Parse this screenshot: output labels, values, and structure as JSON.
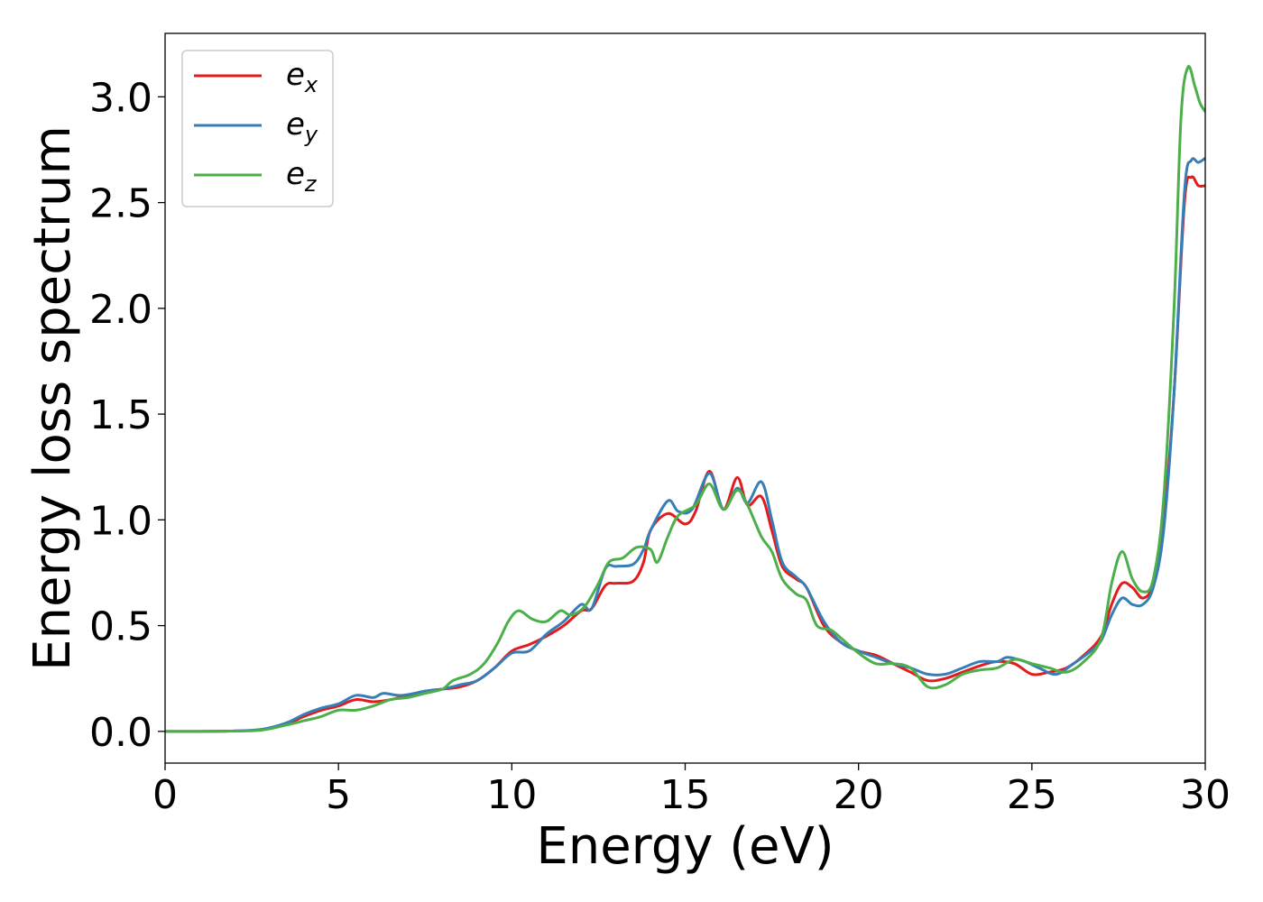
{
  "chart_data": {
    "type": "line",
    "xlabel": "Energy (eV)",
    "ylabel": "Energy loss spectrum",
    "xlim": [
      0,
      30
    ],
    "ylim": [
      -0.15,
      3.3
    ],
    "xticks": [
      0,
      5,
      10,
      15,
      20,
      25,
      30
    ],
    "yticks": [
      0.0,
      0.5,
      1.0,
      1.5,
      2.0,
      2.5,
      3.0
    ],
    "xtick_labels": [
      "0",
      "5",
      "10",
      "15",
      "20",
      "25",
      "30"
    ],
    "ytick_labels": [
      "0.0",
      "0.5",
      "1.0",
      "1.5",
      "2.0",
      "2.5",
      "3.0"
    ],
    "grid": false,
    "legend_position": "top-left",
    "series": [
      {
        "name": "e_x",
        "label_base": "e",
        "label_sub": "x",
        "color": "#e41a1c",
        "points": [
          [
            0,
            0
          ],
          [
            1,
            0
          ],
          [
            2,
            0.002
          ],
          [
            2.8,
            0.008
          ],
          [
            3.5,
            0.035
          ],
          [
            4,
            0.07
          ],
          [
            4.5,
            0.1
          ],
          [
            5,
            0.12
          ],
          [
            5.5,
            0.15
          ],
          [
            6,
            0.14
          ],
          [
            6.5,
            0.15
          ],
          [
            7,
            0.17
          ],
          [
            7.5,
            0.19
          ],
          [
            8,
            0.2
          ],
          [
            8.5,
            0.21
          ],
          [
            9,
            0.24
          ],
          [
            9.5,
            0.3
          ],
          [
            10,
            0.38
          ],
          [
            10.5,
            0.41
          ],
          [
            11,
            0.45
          ],
          [
            11.5,
            0.5
          ],
          [
            12,
            0.57
          ],
          [
            12.3,
            0.58
          ],
          [
            12.7,
            0.69
          ],
          [
            13,
            0.7
          ],
          [
            13.5,
            0.71
          ],
          [
            13.8,
            0.8
          ],
          [
            14,
            0.95
          ],
          [
            14.5,
            1.03
          ],
          [
            15,
            0.98
          ],
          [
            15.3,
            1.04
          ],
          [
            15.7,
            1.23
          ],
          [
            16.1,
            1.05
          ],
          [
            16.5,
            1.2
          ],
          [
            16.8,
            1.07
          ],
          [
            17.2,
            1.11
          ],
          [
            17.5,
            0.95
          ],
          [
            17.8,
            0.78
          ],
          [
            18.2,
            0.72
          ],
          [
            18.5,
            0.68
          ],
          [
            19,
            0.5
          ],
          [
            19.5,
            0.42
          ],
          [
            20,
            0.38
          ],
          [
            20.5,
            0.36
          ],
          [
            21,
            0.32
          ],
          [
            21.5,
            0.28
          ],
          [
            22,
            0.24
          ],
          [
            22.5,
            0.25
          ],
          [
            23,
            0.28
          ],
          [
            23.5,
            0.31
          ],
          [
            24,
            0.33
          ],
          [
            24.5,
            0.32
          ],
          [
            25,
            0.27
          ],
          [
            25.5,
            0.28
          ],
          [
            26,
            0.3
          ],
          [
            26.5,
            0.36
          ],
          [
            27,
            0.45
          ],
          [
            27.3,
            0.6
          ],
          [
            27.6,
            0.7
          ],
          [
            27.9,
            0.68
          ],
          [
            28.2,
            0.63
          ],
          [
            28.5,
            0.7
          ],
          [
            28.8,
            1.0
          ],
          [
            29.1,
            1.6
          ],
          [
            29.4,
            2.5
          ],
          [
            29.6,
            2.62
          ],
          [
            29.8,
            2.58
          ],
          [
            30,
            2.58
          ]
        ]
      },
      {
        "name": "e_y",
        "label_base": "e",
        "label_sub": "y",
        "color": "#377eb8",
        "points": [
          [
            0,
            0
          ],
          [
            1,
            0
          ],
          [
            2,
            0.002
          ],
          [
            2.8,
            0.01
          ],
          [
            3.5,
            0.04
          ],
          [
            4,
            0.08
          ],
          [
            4.5,
            0.11
          ],
          [
            5,
            0.13
          ],
          [
            5.5,
            0.17
          ],
          [
            6,
            0.16
          ],
          [
            6.3,
            0.18
          ],
          [
            6.8,
            0.17
          ],
          [
            7.5,
            0.19
          ],
          [
            8,
            0.2
          ],
          [
            8.5,
            0.22
          ],
          [
            9,
            0.24
          ],
          [
            9.5,
            0.3
          ],
          [
            10,
            0.37
          ],
          [
            10.5,
            0.38
          ],
          [
            11,
            0.46
          ],
          [
            11.5,
            0.52
          ],
          [
            12,
            0.6
          ],
          [
            12.3,
            0.58
          ],
          [
            12.7,
            0.77
          ],
          [
            13,
            0.78
          ],
          [
            13.5,
            0.79
          ],
          [
            13.8,
            0.86
          ],
          [
            14,
            0.95
          ],
          [
            14.5,
            1.09
          ],
          [
            14.8,
            1.04
          ],
          [
            15.2,
            1.05
          ],
          [
            15.7,
            1.22
          ],
          [
            16.1,
            1.05
          ],
          [
            16.5,
            1.15
          ],
          [
            16.8,
            1.08
          ],
          [
            17.2,
            1.18
          ],
          [
            17.5,
            1.0
          ],
          [
            17.8,
            0.8
          ],
          [
            18.2,
            0.73
          ],
          [
            18.5,
            0.68
          ],
          [
            19,
            0.52
          ],
          [
            19.5,
            0.42
          ],
          [
            20,
            0.38
          ],
          [
            20.5,
            0.35
          ],
          [
            21,
            0.32
          ],
          [
            21.5,
            0.3
          ],
          [
            22,
            0.27
          ],
          [
            22.5,
            0.27
          ],
          [
            23,
            0.3
          ],
          [
            23.5,
            0.33
          ],
          [
            24,
            0.33
          ],
          [
            24.3,
            0.35
          ],
          [
            24.8,
            0.33
          ],
          [
            25.2,
            0.3
          ],
          [
            25.7,
            0.27
          ],
          [
            26.2,
            0.32
          ],
          [
            26.7,
            0.38
          ],
          [
            27,
            0.43
          ],
          [
            27.3,
            0.55
          ],
          [
            27.6,
            0.63
          ],
          [
            27.9,
            0.6
          ],
          [
            28.2,
            0.6
          ],
          [
            28.5,
            0.68
          ],
          [
            28.8,
            0.95
          ],
          [
            29.1,
            1.6
          ],
          [
            29.4,
            2.55
          ],
          [
            29.6,
            2.7
          ],
          [
            29.8,
            2.69
          ],
          [
            30,
            2.71
          ]
        ]
      },
      {
        "name": "e_z",
        "label_base": "e",
        "label_sub": "z",
        "color": "#4daf4a",
        "points": [
          [
            0,
            0
          ],
          [
            1,
            0
          ],
          [
            2,
            0.001
          ],
          [
            2.8,
            0.006
          ],
          [
            3.5,
            0.03
          ],
          [
            4,
            0.05
          ],
          [
            4.5,
            0.07
          ],
          [
            5,
            0.1
          ],
          [
            5.5,
            0.1
          ],
          [
            6,
            0.12
          ],
          [
            6.5,
            0.15
          ],
          [
            7,
            0.16
          ],
          [
            7.5,
            0.18
          ],
          [
            8,
            0.2
          ],
          [
            8.3,
            0.24
          ],
          [
            8.8,
            0.27
          ],
          [
            9.2,
            0.32
          ],
          [
            9.6,
            0.42
          ],
          [
            9.9,
            0.52
          ],
          [
            10.2,
            0.57
          ],
          [
            10.6,
            0.53
          ],
          [
            11,
            0.52
          ],
          [
            11.4,
            0.57
          ],
          [
            11.7,
            0.55
          ],
          [
            12.1,
            0.59
          ],
          [
            12.5,
            0.7
          ],
          [
            12.8,
            0.8
          ],
          [
            13.2,
            0.82
          ],
          [
            13.6,
            0.87
          ],
          [
            14,
            0.86
          ],
          [
            14.2,
            0.8
          ],
          [
            14.5,
            0.92
          ],
          [
            14.8,
            1.02
          ],
          [
            15.3,
            1.07
          ],
          [
            15.7,
            1.17
          ],
          [
            16.1,
            1.05
          ],
          [
            16.5,
            1.14
          ],
          [
            16.8,
            1.07
          ],
          [
            17.2,
            0.92
          ],
          [
            17.5,
            0.85
          ],
          [
            17.8,
            0.72
          ],
          [
            18.2,
            0.65
          ],
          [
            18.5,
            0.62
          ],
          [
            18.8,
            0.5
          ],
          [
            19.2,
            0.48
          ],
          [
            19.5,
            0.44
          ],
          [
            20,
            0.37
          ],
          [
            20.5,
            0.32
          ],
          [
            21,
            0.32
          ],
          [
            21.5,
            0.3
          ],
          [
            22,
            0.21
          ],
          [
            22.5,
            0.22
          ],
          [
            23,
            0.27
          ],
          [
            23.5,
            0.29
          ],
          [
            24,
            0.3
          ],
          [
            24.5,
            0.34
          ],
          [
            25,
            0.32
          ],
          [
            25.5,
            0.3
          ],
          [
            26,
            0.28
          ],
          [
            26.5,
            0.33
          ],
          [
            27,
            0.44
          ],
          [
            27.3,
            0.7
          ],
          [
            27.6,
            0.85
          ],
          [
            27.9,
            0.72
          ],
          [
            28.2,
            0.66
          ],
          [
            28.5,
            0.72
          ],
          [
            28.8,
            1.1
          ],
          [
            29.1,
            2.0
          ],
          [
            29.3,
            2.9
          ],
          [
            29.5,
            3.14
          ],
          [
            29.7,
            3.05
          ],
          [
            29.85,
            2.97
          ],
          [
            30,
            2.93
          ]
        ]
      }
    ]
  }
}
